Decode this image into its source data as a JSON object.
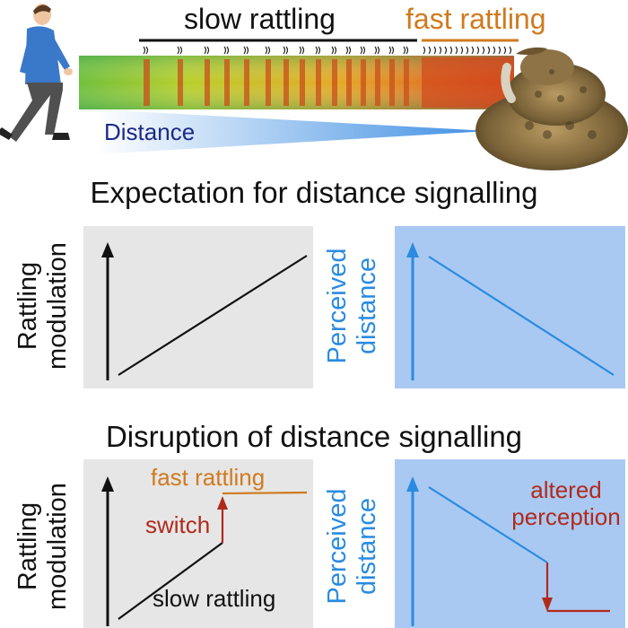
{
  "header": {
    "slow_rattling": "slow rattling",
    "fast_rattling": "fast rattling",
    "distance": "Distance"
  },
  "section1": {
    "title": "Expectation for distance signalling",
    "left_ylabel_line1": "Rattling",
    "left_ylabel_line2": "modulation",
    "right_ylabel_line1": "Perceived",
    "right_ylabel_line2": "distance"
  },
  "section2": {
    "title": "Disruption of distance signalling",
    "left_ylabel_line1": "Rattling",
    "left_ylabel_line2": "modulation",
    "right_ylabel_line1": "Perceived",
    "right_ylabel_line2": "distance",
    "fast_rattling": "fast rattling",
    "switch": "switch",
    "slow_rattling": "slow rattling",
    "altered_line1": "altered",
    "altered_line2": "perception"
  },
  "colors": {
    "orange": "#d07a1f",
    "dark_red": "#b02a1c",
    "blue": "#2a8be0",
    "panel_grey": "#e6e6e6",
    "panel_blue": "#a9c9f2",
    "navy": "#1b2a86"
  }
}
